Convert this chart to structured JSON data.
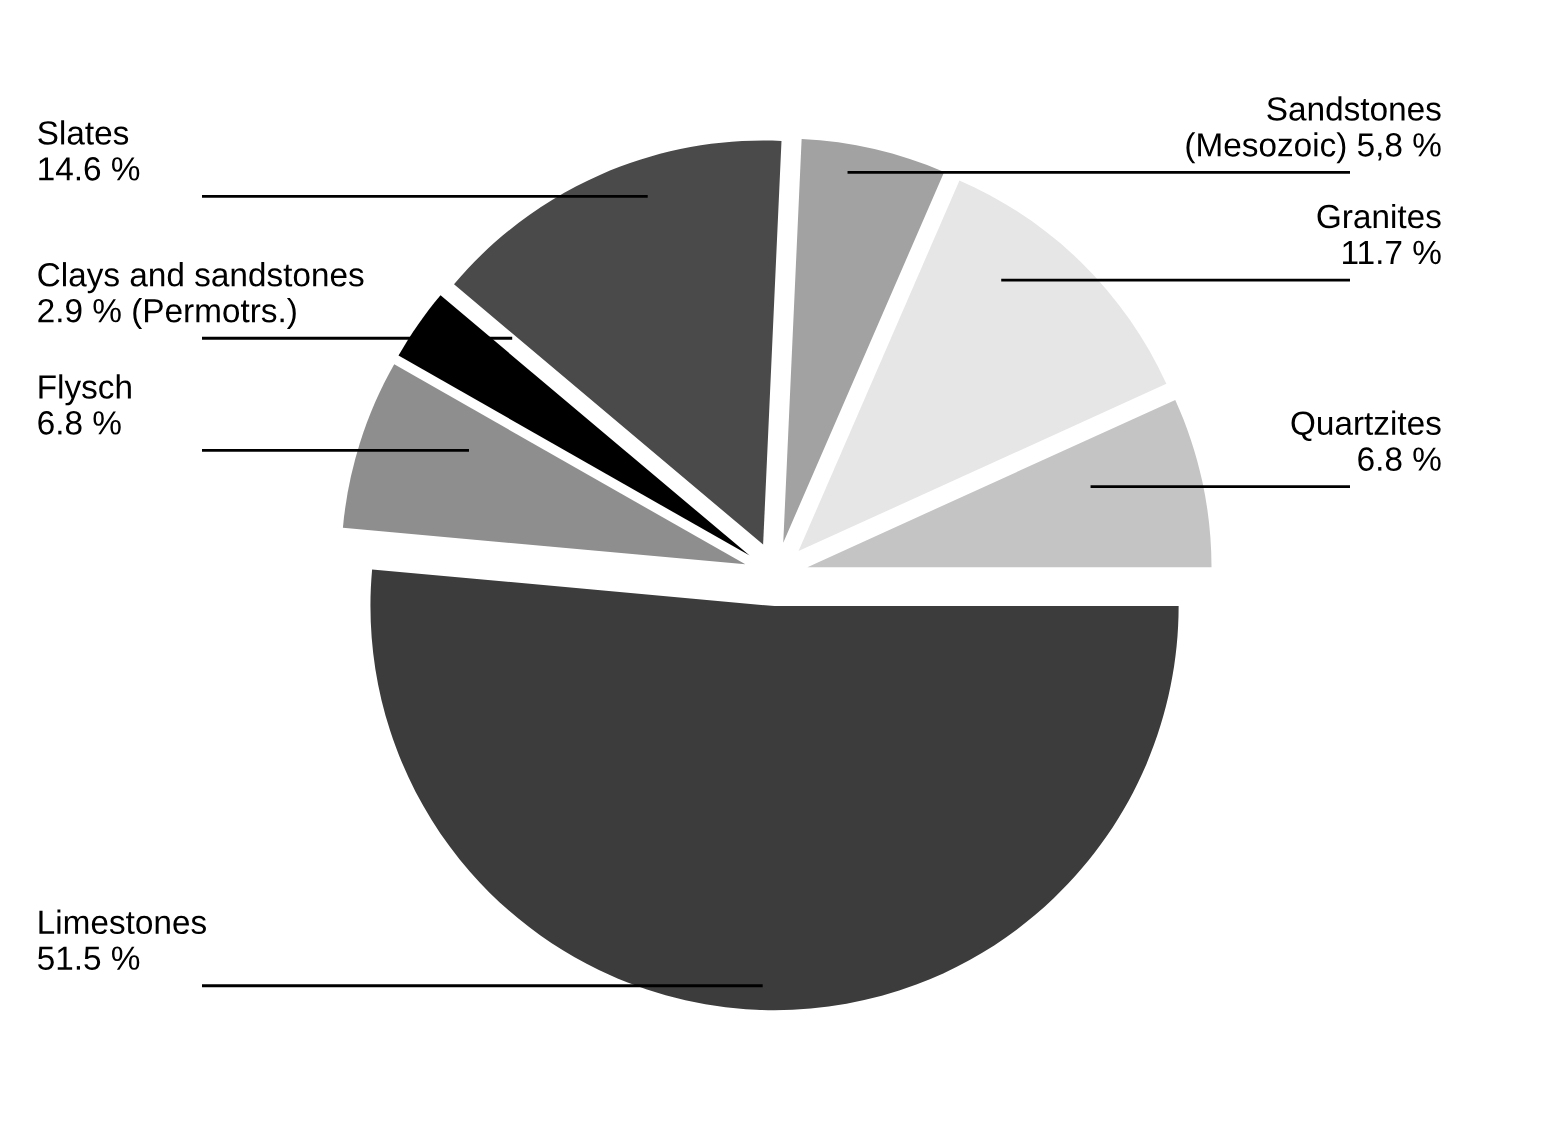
{
  "chart_data": {
    "type": "pie",
    "categories": [
      "Quartzites",
      "Granites",
      "Sandstones",
      "Slates",
      "Clays and sandstones",
      "Flysch",
      "Limestones"
    ],
    "values": [
      6.8,
      11.7,
      5.8,
      14.6,
      2.9,
      6.8,
      51.5
    ],
    "value_labels": [
      "6.8 %",
      "11.7 %",
      "(Mesozoic) 5,8 %",
      "14.6 %",
      "2.9 % (Permotrs.)",
      "6.8 %",
      "51.5 %"
    ],
    "colors": [
      "#c4c4c4",
      "#e6e6e6",
      "#a2a2a2",
      "#4a4a4a",
      "#000000",
      "#8e8e8e",
      "#3c3c3c"
    ]
  }
}
